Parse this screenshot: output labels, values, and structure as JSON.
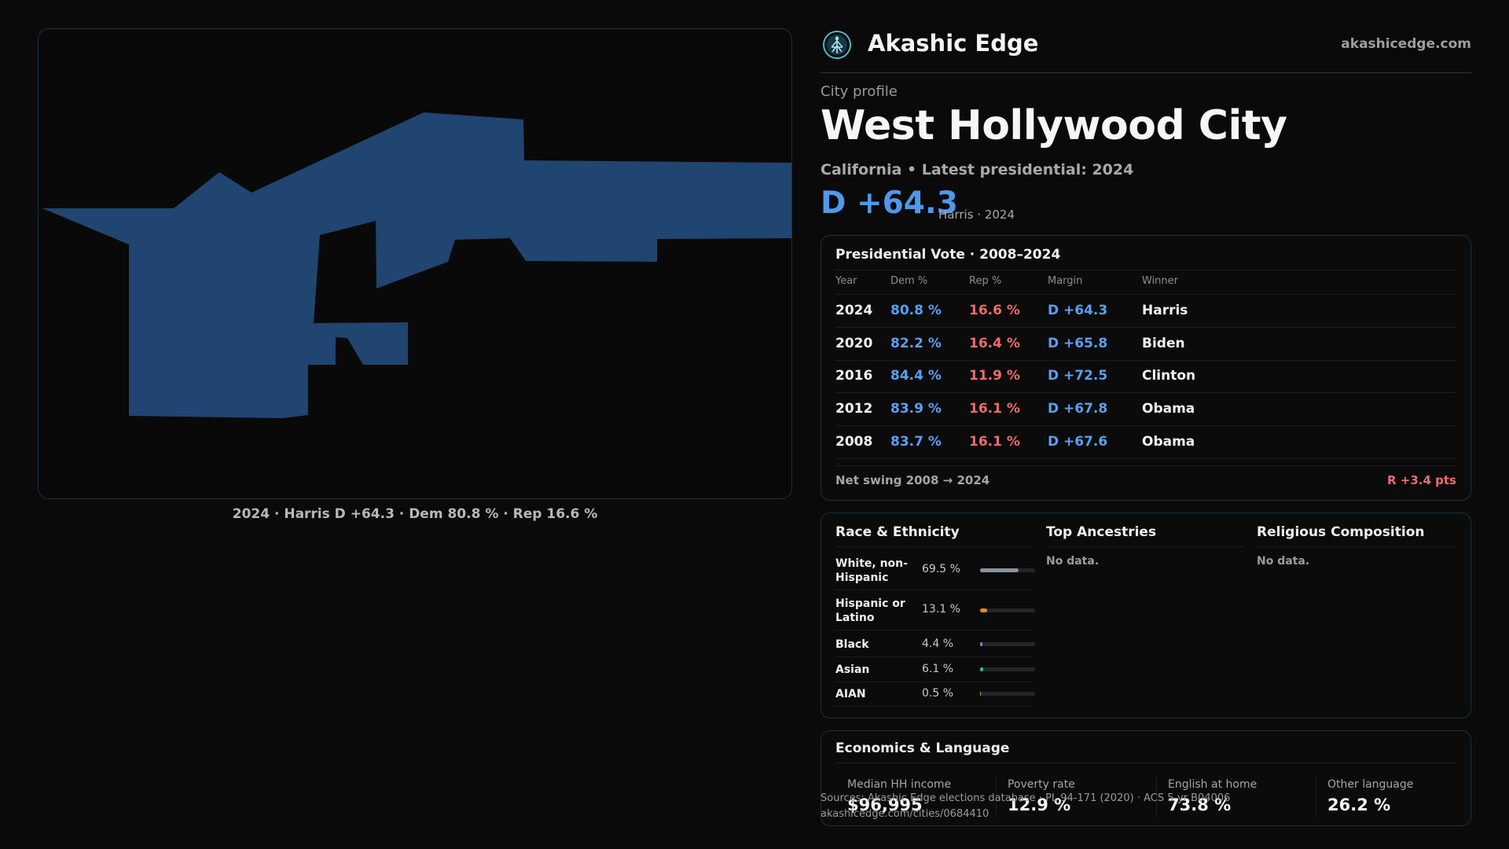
{
  "map": {
    "caption": "2024 · Harris D +64.3 · Dem 80.8 % · Rep 16.6 %",
    "fill_color": "#1f4570"
  },
  "header": {
    "logo_icon": "tree-of-life-icon",
    "brand": "Akashic Edge",
    "domain": "akashicedge.com"
  },
  "profile": {
    "eyebrow": "City profile",
    "title": "West Hollywood City",
    "subtitle": "California • Latest presidential: 2024",
    "margin": "D +64.3",
    "margin_note": "Harris · 2024"
  },
  "presidential": {
    "title": "Presidential Vote · 2008–2024",
    "headers": [
      "Year",
      "Dem %",
      "Rep %",
      "Margin",
      "Winner"
    ],
    "rows": [
      {
        "year": "2024",
        "dem": "80.8 %",
        "rep": "16.6 %",
        "margin": "D +64.3",
        "winner": "Harris"
      },
      {
        "year": "2020",
        "dem": "82.2 %",
        "rep": "16.4 %",
        "margin": "D +65.8",
        "winner": "Biden"
      },
      {
        "year": "2016",
        "dem": "84.4 %",
        "rep": "11.9 %",
        "margin": "D +72.5",
        "winner": "Clinton"
      },
      {
        "year": "2012",
        "dem": "83.9 %",
        "rep": "16.1 %",
        "margin": "D +67.8",
        "winner": "Obama"
      },
      {
        "year": "2008",
        "dem": "83.7 %",
        "rep": "16.1 %",
        "margin": "D +67.6",
        "winner": "Obama"
      }
    ],
    "swing_label": "Net swing 2008 → 2024",
    "swing_value": "R +3.4 pts"
  },
  "demographics": {
    "race_title": "Race & Ethnicity",
    "race": [
      {
        "label": "White, non-Hispanic",
        "value": "69.5 %",
        "share": 0.695,
        "color": "#8a93a3"
      },
      {
        "label": "Hispanic or Latino",
        "value": "13.1 %",
        "share": 0.131,
        "color": "#e08a2a"
      },
      {
        "label": "Black",
        "value": "4.4 %",
        "share": 0.044,
        "color": "#8a7af0"
      },
      {
        "label": "Asian",
        "value": "6.1 %",
        "share": 0.061,
        "color": "#2ec27e"
      },
      {
        "label": "AIAN",
        "value": "0.5 %",
        "share": 0.005,
        "color": "#c8a040"
      }
    ],
    "ancestries_title": "Top Ancestries",
    "ancestries_empty": "No data.",
    "religion_title": "Religious Composition",
    "religion_empty": "No data."
  },
  "economics": {
    "title": "Economics & Language",
    "stats": [
      {
        "label": "Median HH income",
        "value": "$96,995"
      },
      {
        "label": "Poverty rate",
        "value": "12.9 %"
      },
      {
        "label": "English at home",
        "value": "73.8 %"
      },
      {
        "label": "Other language",
        "value": "26.2 %"
      }
    ]
  },
  "source": {
    "line1": "Sources: Akashic Edge elections database · PL 94-171 (2020) · ACS 5-yr B04006",
    "line2": "akashicedge.com/cities/0684410"
  }
}
